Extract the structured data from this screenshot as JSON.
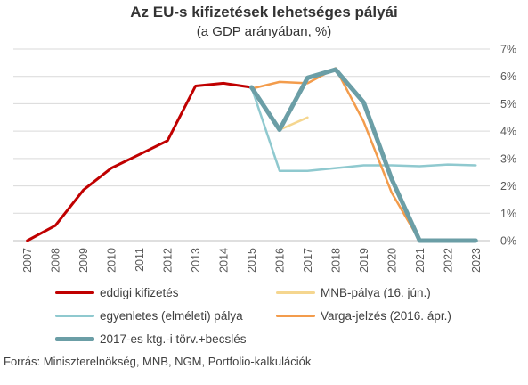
{
  "title": "Az EU-s kifizetések lehetséges pályái",
  "subtitle": "(a GDP arányában, %)",
  "source": "Forrás: Miniszterelnökség, MNB, NGM, Portfolio-kalkulációk",
  "chart_data": {
    "type": "line",
    "x": [
      "2007",
      "2008",
      "2009",
      "2010",
      "2011",
      "2012",
      "2013",
      "2014",
      "2015",
      "2016",
      "2017",
      "2018",
      "2019",
      "2020",
      "2021",
      "2022",
      "2023"
    ],
    "ylim": [
      0,
      7
    ],
    "yticks": [
      "0%",
      "1%",
      "2%",
      "3%",
      "4%",
      "5%",
      "6%",
      "7%"
    ],
    "y_axis_side": "right",
    "grid": "horizontal",
    "legend_position": "bottom",
    "series": [
      {
        "name": "eddigi kifizetés",
        "color": "#c00000",
        "width": 3,
        "points": [
          [
            "2007",
            0.0
          ],
          [
            "2008",
            0.55
          ],
          [
            "2009",
            1.85
          ],
          [
            "2010",
            2.65
          ],
          [
            "2011",
            3.15
          ],
          [
            "2012",
            3.65
          ],
          [
            "2013",
            5.65
          ],
          [
            "2014",
            5.75
          ],
          [
            "2015",
            5.6
          ]
        ]
      },
      {
        "name": "MNB-pálya (16. jún.)",
        "color": "#f5d68f",
        "width": 2.5,
        "points": [
          [
            "2016",
            4.05
          ],
          [
            "2017",
            4.5
          ]
        ]
      },
      {
        "name": "egyenletes (elméleti) pálya",
        "color": "#8fc9cf",
        "width": 2.5,
        "points": [
          [
            "2015",
            5.6
          ],
          [
            "2016",
            2.55
          ],
          [
            "2017",
            2.55
          ],
          [
            "2018",
            2.65
          ],
          [
            "2019",
            2.75
          ],
          [
            "2020",
            2.75
          ],
          [
            "2021",
            2.72
          ],
          [
            "2022",
            2.78
          ],
          [
            "2023",
            2.75
          ]
        ]
      },
      {
        "name": "Varga-jelzés (2016. ápr.)",
        "color": "#f39c4c",
        "width": 2.5,
        "points": [
          [
            "2015",
            5.55
          ],
          [
            "2016",
            5.8
          ],
          [
            "2017",
            5.75
          ],
          [
            "2018",
            6.3
          ],
          [
            "2019",
            4.35
          ],
          [
            "2020",
            1.75
          ],
          [
            "2021",
            0.0
          ],
          [
            "2022",
            0.0
          ],
          [
            "2023",
            0.0
          ]
        ]
      },
      {
        "name": "2017-es ktg.-i törv.+becslés",
        "color": "#6b9ea6",
        "width": 5,
        "points": [
          [
            "2015",
            5.6
          ],
          [
            "2016",
            4.05
          ],
          [
            "2017",
            5.95
          ],
          [
            "2018",
            6.25
          ],
          [
            "2019",
            5.05
          ],
          [
            "2020",
            2.25
          ],
          [
            "2021",
            0.0
          ],
          [
            "2022",
            0.0
          ],
          [
            "2023",
            0.0
          ]
        ]
      }
    ]
  }
}
